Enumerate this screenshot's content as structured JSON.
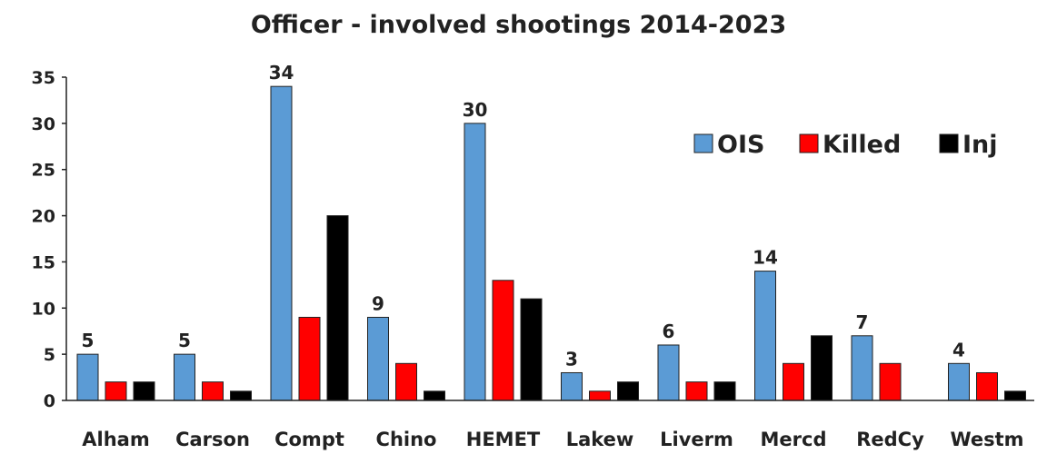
{
  "chart_data": {
    "type": "bar",
    "title": "Officer - involved shootings 2014-2023",
    "xlabel": "",
    "ylabel": "",
    "ylim": [
      0,
      35
    ],
    "yticks": [
      0,
      5,
      10,
      15,
      20,
      25,
      30,
      35
    ],
    "grid": false,
    "legend_position": "top-right",
    "categories": [
      "Alham",
      "Carson",
      "Compt",
      "Chino",
      "HEMET",
      "Lakew",
      "Liverm",
      "Mercd",
      "RedCy",
      "Westm"
    ],
    "series": [
      {
        "name": "OIS",
        "color": "#5b9bd5",
        "values": [
          5,
          5,
          34,
          9,
          30,
          3,
          6,
          14,
          7,
          4
        ]
      },
      {
        "name": "Killed",
        "color": "#ff0000",
        "values": [
          2,
          2,
          9,
          4,
          13,
          1,
          2,
          4,
          4,
          3
        ]
      },
      {
        "name": "Inj",
        "color": "#000000",
        "values": [
          2,
          1,
          20,
          1,
          11,
          2,
          2,
          7,
          0,
          1
        ]
      }
    ],
    "data_labels": {
      "series": "OIS",
      "values": [
        5,
        5,
        34,
        9,
        30,
        3,
        6,
        14,
        7,
        4
      ]
    }
  }
}
